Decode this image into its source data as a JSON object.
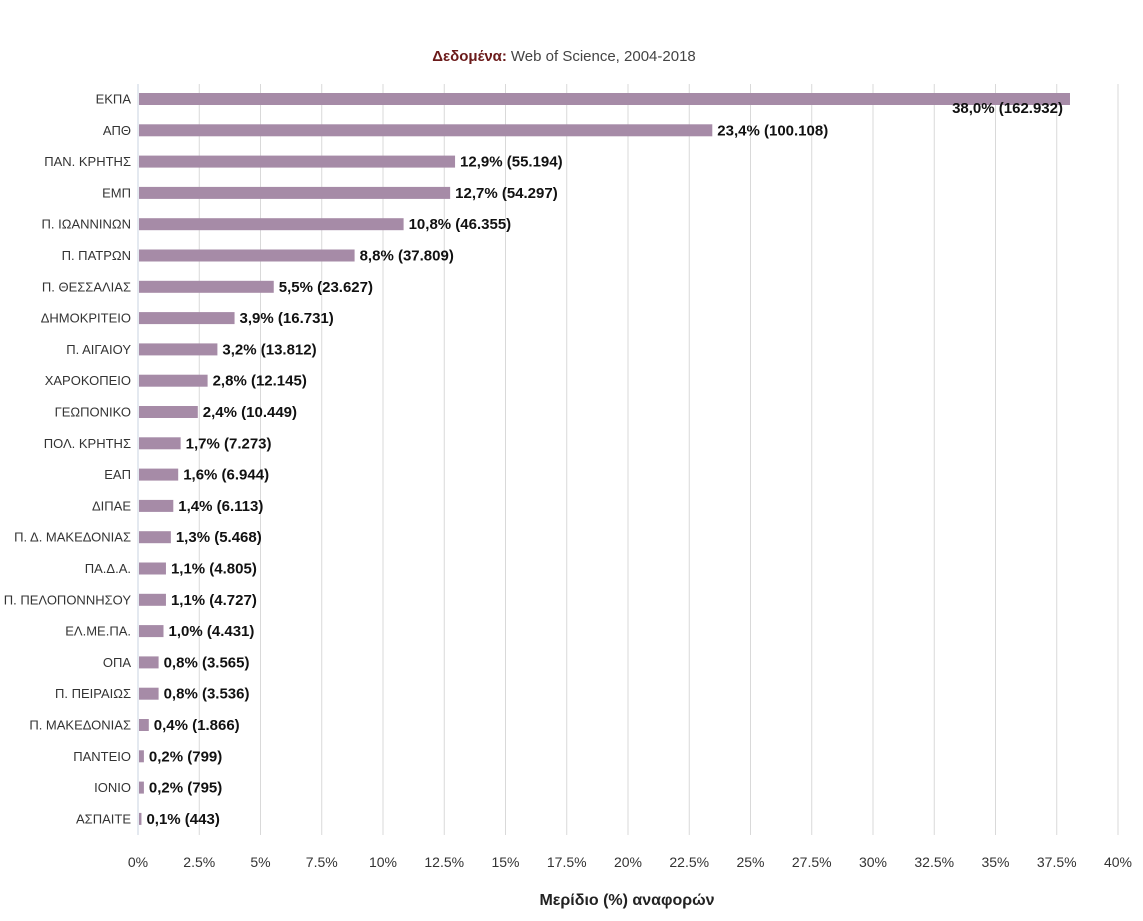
{
  "chart_data": {
    "type": "bar",
    "orientation": "horizontal",
    "title_bold": "Δεδομένα:",
    "title_rest": "Web of Science, 2004-2018",
    "xlabel": "Μερίδιο (%) αναφορών",
    "ylabel": "",
    "xlim": [
      0,
      40
    ],
    "xticks": [
      0,
      2.5,
      5,
      7.5,
      10,
      12.5,
      15,
      17.5,
      20,
      22.5,
      25,
      27.5,
      30,
      32.5,
      35,
      37.5,
      40
    ],
    "xtick_labels": [
      "0%",
      "2.5%",
      "5%",
      "7.5%",
      "10%",
      "12.5%",
      "15%",
      "17.5%",
      "20%",
      "22.5%",
      "25%",
      "27.5%",
      "30%",
      "32.5%",
      "35%",
      "37.5%",
      "40%"
    ],
    "grid": true,
    "legend": "none",
    "bar_color": "#a68ba7",
    "categories": [
      "ΕΚΠΑ",
      "ΑΠΘ",
      "ΠΑΝ. ΚΡΗΤΗΣ",
      "ΕΜΠ",
      "Π. ΙΩΑΝΝΙΝΩΝ",
      "Π. ΠΑΤΡΩΝ",
      "Π. ΘΕΣΣΑΛΙΑΣ",
      "ΔΗΜΟΚΡΙΤΕΙΟ",
      "Π. ΑΙΓΑΙΟΥ",
      "ΧΑΡΟΚΟΠΕΙΟ",
      "ΓΕΩΠΟΝΙΚΟ",
      "ΠΟΛ. ΚΡΗΤΗΣ",
      "ΕΑΠ",
      "ΔΙΠΑΕ",
      "Π. Δ. ΜΑΚΕΔΟΝΙΑΣ",
      "ΠΑ.Δ.Α.",
      "Π. ΠΕΛΟΠΟΝΝΗΣΟΥ",
      "ΕΛ.ΜΕ.ΠΑ.",
      "ΟΠΑ",
      "Π. ΠΕΙΡΑΙΩΣ",
      "Π. ΜΑΚΕΔΟΝΙΑΣ",
      "ΠΑΝΤΕΙΟ",
      "ΙΟΝΙΟ",
      "ΑΣΠΑΙΤΕ"
    ],
    "values": [
      38.0,
      23.4,
      12.9,
      12.7,
      10.8,
      8.8,
      5.5,
      3.9,
      3.2,
      2.8,
      2.4,
      1.7,
      1.6,
      1.4,
      1.3,
      1.1,
      1.1,
      1.0,
      0.8,
      0.8,
      0.4,
      0.2,
      0.2,
      0.1
    ],
    "data_labels": [
      "38,0% (162.932)",
      "23,4% (100.108)",
      "12,9% (55.194)",
      "12,7% (54.297)",
      "10,8% (46.355)",
      "8,8% (37.809)",
      "5,5% (23.627)",
      "3,9% (16.731)",
      "3,2% (13.812)",
      "2,8% (12.145)",
      "2,4% (10.449)",
      "1,7% (7.273)",
      "1,6% (6.944)",
      "1,4% (6.113)",
      "1,3% (5.468)",
      "1,1% (4.805)",
      "1,1% (4.727)",
      "1,0% (4.431)",
      "0,8% (3.565)",
      "0,8% (3.536)",
      "0,4% (1.866)",
      "0,2% (799)",
      "0,2% (795)",
      "0,1% (443)"
    ]
  }
}
